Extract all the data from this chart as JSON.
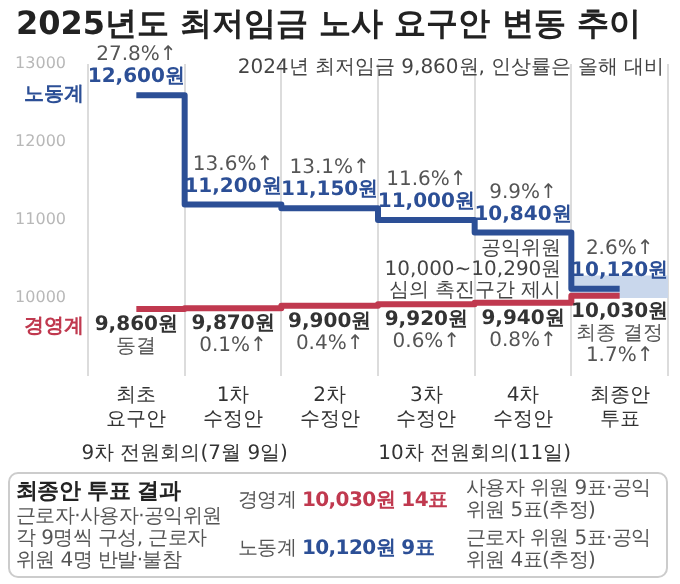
{
  "chart_data": {
    "type": "step",
    "title": "2025년도 최저임금 노사 요구안 변동 추이",
    "subtitle": "2024년 최저임금 9,860원, 인상률은 올해 대비",
    "categories": [
      "최초 요구안",
      "1차 수정안",
      "2차 수정안",
      "3차 수정안",
      "4차 수정안",
      "최종안 투표"
    ],
    "series": [
      {
        "name": "노동계",
        "color": "#2c4f96",
        "values": [
          12600,
          11200,
          11150,
          11000,
          10840,
          10120
        ],
        "value_labels": [
          "27.8%↑\n12,600원",
          "13.6%↑\n11,200원",
          "13.1%↑\n11,150원",
          "11.6%↑\n11,000원",
          "9.9%↑\n10,840원",
          "2.6%↑\n10,120원"
        ]
      },
      {
        "name": "경영계",
        "color": "#c0394f",
        "values": [
          9860,
          9870,
          9900,
          9920,
          9940,
          10030
        ],
        "value_labels": [
          "9,860원\n동결",
          "9,870원\n0.1%↑",
          "9,900원\n0.4%↑",
          "9,920원\n0.6%↑",
          "9,940원\n0.8%↑",
          "10,030원\n최종 결정\n1.7%↑"
        ]
      }
    ],
    "ylim": [
      9000,
      13000
    ],
    "yticks": [
      10000,
      11000,
      12000,
      13000
    ],
    "grid": "x",
    "legend": false,
    "bands": [
      {
        "axis": "y",
        "from": 10000,
        "to": 10290,
        "label": "공익위원\n10,000~10,290원\n심의 촉진구간 제시",
        "color": "#c9d7ec"
      }
    ],
    "annotations": [
      "9차 전원회의(7월 9일)",
      "10차 전원회의(11일)",
      "최종안 투표 결과",
      "근로자·사용자·공익위원 각 9명씩 구성, 근로자 위원 4명 반발·불참",
      "경영계 10,030원 14표",
      "사용자 위원 9표·공익위원 5표(추정)",
      "노동계 10,120원 9표",
      "근로자 위원 5표·공익위원 4표(추정)"
    ]
  }
}
